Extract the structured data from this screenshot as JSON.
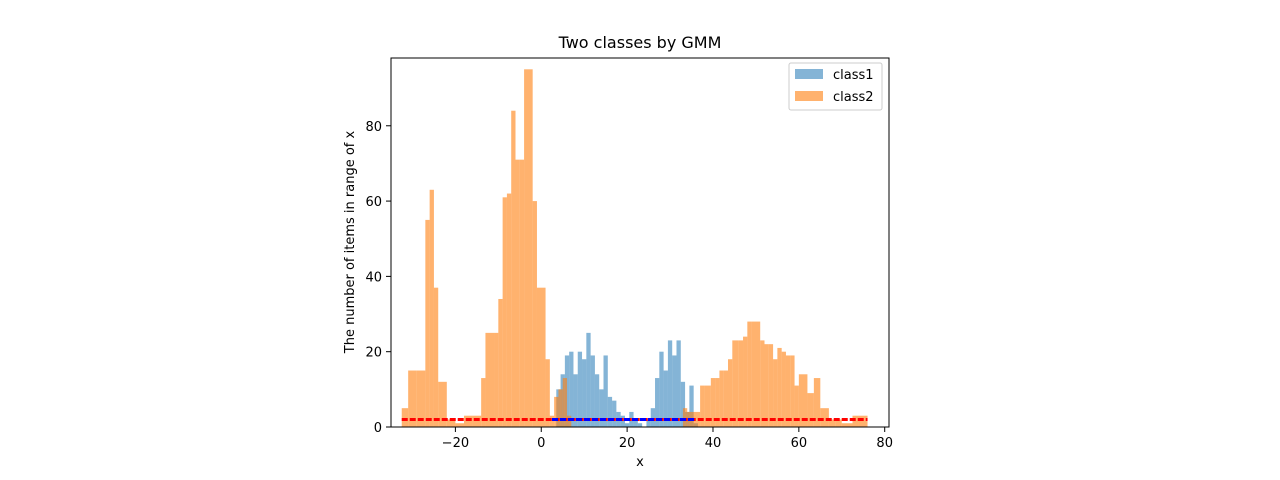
{
  "chart_data": {
    "type": "histogram",
    "title": "Two classes by GMM",
    "xlabel": "x",
    "ylabel": "The number of items in range of x",
    "xlim": [
      -35,
      81
    ],
    "ylim": [
      0,
      98
    ],
    "xticks": [
      -20,
      0,
      20,
      40,
      60,
      80
    ],
    "yticks": [
      0,
      20,
      40,
      60,
      80
    ],
    "xtick_labels": [
      "−20",
      "0",
      "20",
      "40",
      "60",
      "80"
    ],
    "ytick_labels": [
      "0",
      "20",
      "40",
      "60",
      "80"
    ],
    "legend": {
      "position": "top-right",
      "entries": [
        "class1",
        "class2"
      ]
    },
    "colors": {
      "class1": "#1f77b4",
      "class2": "#ff7f0e"
    },
    "series": [
      {
        "name": "class1",
        "opacity": 0.55,
        "bins": [
          {
            "x0": 2.5,
            "x1": 3.5,
            "y": 0
          },
          {
            "x0": 3.5,
            "x1": 4.5,
            "y": 10
          },
          {
            "x0": 4.5,
            "x1": 5.5,
            "y": 14
          },
          {
            "x0": 5.5,
            "x1": 6.5,
            "y": 19
          },
          {
            "x0": 6.5,
            "x1": 7.5,
            "y": 20
          },
          {
            "x0": 7.5,
            "x1": 8.5,
            "y": 14
          },
          {
            "x0": 8.5,
            "x1": 9.5,
            "y": 20
          },
          {
            "x0": 9.5,
            "x1": 10.5,
            "y": 18
          },
          {
            "x0": 10.5,
            "x1": 11.5,
            "y": 25
          },
          {
            "x0": 11.5,
            "x1": 12.5,
            "y": 19
          },
          {
            "x0": 12.5,
            "x1": 13.5,
            "y": 14
          },
          {
            "x0": 13.5,
            "x1": 14.5,
            "y": 10
          },
          {
            "x0": 14.5,
            "x1": 15.5,
            "y": 19
          },
          {
            "x0": 15.5,
            "x1": 16.5,
            "y": 8
          },
          {
            "x0": 16.5,
            "x1": 17.5,
            "y": 7
          },
          {
            "x0": 17.5,
            "x1": 18.5,
            "y": 4
          },
          {
            "x0": 18.5,
            "x1": 19.5,
            "y": 3
          },
          {
            "x0": 19.5,
            "x1": 20.5,
            "y": 1
          },
          {
            "x0": 20.5,
            "x1": 21.5,
            "y": 4
          },
          {
            "x0": 21.5,
            "x1": 22.5,
            "y": 2
          },
          {
            "x0": 22.5,
            "x1": 23.5,
            "y": 1
          },
          {
            "x0": 23.5,
            "x1": 24.5,
            "y": 0
          },
          {
            "x0": 24.5,
            "x1": 25.5,
            "y": 2
          },
          {
            "x0": 25.5,
            "x1": 26.5,
            "y": 5
          },
          {
            "x0": 26.5,
            "x1": 27.5,
            "y": 13
          },
          {
            "x0": 27.5,
            "x1": 28.5,
            "y": 20
          },
          {
            "x0": 28.5,
            "x1": 29.5,
            "y": 15
          },
          {
            "x0": 29.5,
            "x1": 30.5,
            "y": 23
          },
          {
            "x0": 30.5,
            "x1": 31.5,
            "y": 19
          },
          {
            "x0": 31.5,
            "x1": 32.5,
            "y": 23
          },
          {
            "x0": 32.5,
            "x1": 33.5,
            "y": 12
          },
          {
            "x0": 33.5,
            "x1": 34.5,
            "y": 4
          },
          {
            "x0": 34.5,
            "x1": 35.5,
            "y": 11
          },
          {
            "x0": 35.5,
            "x1": 36.5,
            "y": 1
          }
        ]
      },
      {
        "name": "class2",
        "opacity": 0.6,
        "bins": [
          {
            "x0": -32.5,
            "x1": -31.0,
            "y": 5
          },
          {
            "x0": -31.0,
            "x1": -29.0,
            "y": 15
          },
          {
            "x0": -29.0,
            "x1": -27.0,
            "y": 15
          },
          {
            "x0": -27.0,
            "x1": -26.0,
            "y": 55
          },
          {
            "x0": -26.0,
            "x1": -25.0,
            "y": 63
          },
          {
            "x0": -25.0,
            "x1": -24.0,
            "y": 37
          },
          {
            "x0": -24.0,
            "x1": -22.0,
            "y": 12
          },
          {
            "x0": -22.0,
            "x1": -20.0,
            "y": 2
          },
          {
            "x0": -20.0,
            "x1": -18.0,
            "y": 1
          },
          {
            "x0": -18.0,
            "x1": -16.0,
            "y": 3
          },
          {
            "x0": -16.0,
            "x1": -14.0,
            "y": 3
          },
          {
            "x0": -14.0,
            "x1": -13.0,
            "y": 13
          },
          {
            "x0": -13.0,
            "x1": -11.0,
            "y": 25
          },
          {
            "x0": -11.0,
            "x1": -10.0,
            "y": 25
          },
          {
            "x0": -10.0,
            "x1": -9.0,
            "y": 34
          },
          {
            "x0": -9.0,
            "x1": -8.0,
            "y": 61
          },
          {
            "x0": -8.0,
            "x1": -7.0,
            "y": 62
          },
          {
            "x0": -7.0,
            "x1": -6.0,
            "y": 84
          },
          {
            "x0": -6.0,
            "x1": -5.0,
            "y": 71
          },
          {
            "x0": -5.0,
            "x1": -4.0,
            "y": 71
          },
          {
            "x0": -4.0,
            "x1": -2.0,
            "y": 95
          },
          {
            "x0": -2.0,
            "x1": -1.0,
            "y": 60
          },
          {
            "x0": -1.0,
            "x1": 1.0,
            "y": 37
          },
          {
            "x0": 1.0,
            "x1": 2.0,
            "y": 18
          },
          {
            "x0": 2.0,
            "x1": 3.0,
            "y": 3
          },
          {
            "x0": 3.0,
            "x1": 4.0,
            "y": 8
          },
          {
            "x0": 4.0,
            "x1": 5.0,
            "y": 10
          },
          {
            "x0": 5.0,
            "x1": 6.0,
            "y": 13
          },
          {
            "x0": 6.0,
            "x1": 7.0,
            "y": 3
          },
          {
            "x0": 33.0,
            "x1": 34.0,
            "y": 5
          },
          {
            "x0": 34.0,
            "x1": 35.0,
            "y": 4
          },
          {
            "x0": 35.0,
            "x1": 37.0,
            "y": 4
          },
          {
            "x0": 37.0,
            "x1": 38.0,
            "y": 11
          },
          {
            "x0": 38.0,
            "x1": 39.5,
            "y": 11
          },
          {
            "x0": 39.5,
            "x1": 40.5,
            "y": 13
          },
          {
            "x0": 40.5,
            "x1": 41.5,
            "y": 13
          },
          {
            "x0": 41.5,
            "x1": 42.5,
            "y": 15
          },
          {
            "x0": 42.5,
            "x1": 43.5,
            "y": 15
          },
          {
            "x0": 43.5,
            "x1": 44.5,
            "y": 18
          },
          {
            "x0": 44.5,
            "x1": 46.0,
            "y": 23
          },
          {
            "x0": 46.0,
            "x1": 47.0,
            "y": 23
          },
          {
            "x0": 47.0,
            "x1": 48.0,
            "y": 24
          },
          {
            "x0": 48.0,
            "x1": 49.0,
            "y": 28
          },
          {
            "x0": 49.0,
            "x1": 51.0,
            "y": 28
          },
          {
            "x0": 51.0,
            "x1": 52.0,
            "y": 23
          },
          {
            "x0": 52.0,
            "x1": 53.0,
            "y": 22
          },
          {
            "x0": 53.0,
            "x1": 54.0,
            "y": 22
          },
          {
            "x0": 54.0,
            "x1": 55.0,
            "y": 18
          },
          {
            "x0": 55.0,
            "x1": 56.0,
            "y": 21
          },
          {
            "x0": 56.0,
            "x1": 57.0,
            "y": 20
          },
          {
            "x0": 57.0,
            "x1": 58.0,
            "y": 19
          },
          {
            "x0": 58.0,
            "x1": 59.0,
            "y": 19
          },
          {
            "x0": 59.0,
            "x1": 60.0,
            "y": 11
          },
          {
            "x0": 60.0,
            "x1": 62.0,
            "y": 14
          },
          {
            "x0": 62.0,
            "x1": 63.5,
            "y": 9
          },
          {
            "x0": 63.5,
            "x1": 65.0,
            "y": 13
          },
          {
            "x0": 65.0,
            "x1": 67.0,
            "y": 5
          },
          {
            "x0": 67.0,
            "x1": 68.5,
            "y": 2
          },
          {
            "x0": 68.5,
            "x1": 70.0,
            "y": 2
          },
          {
            "x0": 70.0,
            "x1": 72.5,
            "y": 1
          },
          {
            "x0": 72.5,
            "x1": 74.0,
            "y": 3
          },
          {
            "x0": 74.0,
            "x1": 76.0,
            "y": 3
          }
        ]
      }
    ],
    "rug": [
      {
        "name": "class2 points",
        "color": "#ff0000",
        "x_start": -32.5,
        "x_end": 76,
        "y": 2
      },
      {
        "name": "class1 points",
        "color": "#0000ff",
        "x_start": 2.5,
        "x_end": 36,
        "y": 2
      }
    ]
  }
}
